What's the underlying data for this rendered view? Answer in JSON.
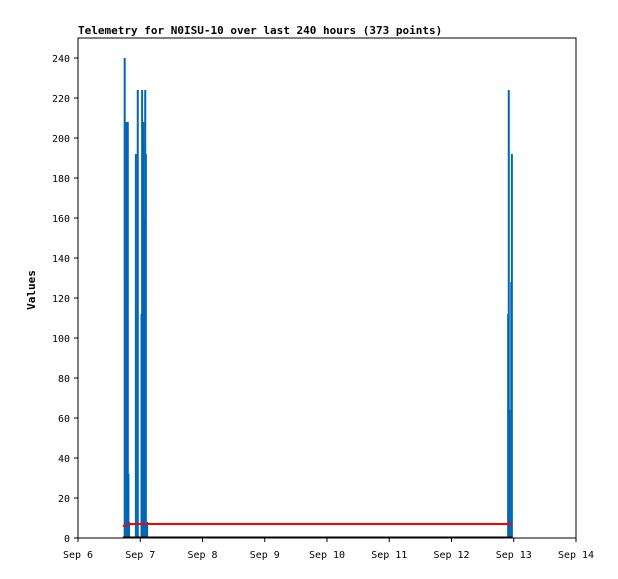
{
  "chart_data": {
    "type": "bar",
    "title": "Telemetry for N0ISU-10 over last 240 hours (373 points)",
    "xlabel": "",
    "ylabel": "Values",
    "xlim": [
      6,
      14
    ],
    "ylim": [
      0,
      250
    ],
    "x_ticks": [
      {
        "label": "Sep 6",
        "x": 6
      },
      {
        "label": "Sep 7",
        "x": 7
      },
      {
        "label": "Sep 8",
        "x": 8
      },
      {
        "label": "Sep 9",
        "x": 9
      },
      {
        "label": "Sep 10",
        "x": 10
      },
      {
        "label": "Sep 11",
        "x": 11
      },
      {
        "label": "Sep 12",
        "x": 12
      },
      {
        "label": "Sep 13",
        "x": 13
      },
      {
        "label": "Sep 14",
        "x": 14
      }
    ],
    "y_ticks": [
      0,
      20,
      40,
      60,
      80,
      100,
      120,
      140,
      160,
      180,
      200,
      220,
      240
    ],
    "grid": false,
    "colors": {
      "bars": "#0066b3",
      "line": "#ff0000",
      "baseline": "#000000"
    },
    "series": [
      {
        "type": "bar",
        "x": [
          6.75,
          6.76,
          6.78,
          6.79,
          6.8,
          6.81,
          6.82,
          6.93,
          6.96,
          7.02,
          7.03,
          7.05,
          7.06,
          7.07,
          7.08,
          7.09,
          7.11,
          12.91,
          12.92,
          12.93,
          12.96,
          12.97
        ],
        "values": [
          240,
          128,
          208,
          64,
          208,
          32,
          8,
          192,
          224,
          112,
          224,
          208,
          160,
          112,
          224,
          192,
          8,
          112,
          224,
          64,
          128,
          192
        ]
      },
      {
        "type": "line",
        "x": [
          6.72,
          6.85,
          12.98
        ],
        "values": [
          6,
          7,
          7
        ]
      },
      {
        "type": "line",
        "x": [
          6.72,
          12.98
        ],
        "values": [
          0,
          0
        ]
      }
    ]
  }
}
